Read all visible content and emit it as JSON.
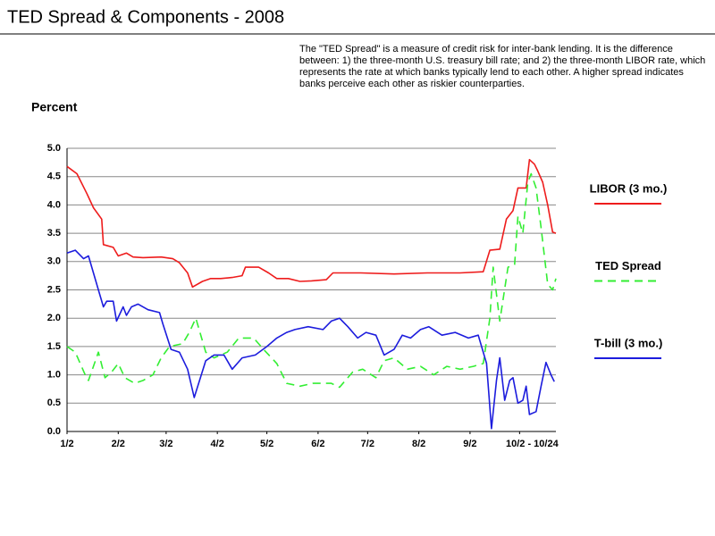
{
  "chart_data": {
    "type": "line",
    "title": "TED Spread & Components - 2008",
    "description": "The \"TED Spread\" is a measure of credit risk for inter-bank lending. It is the difference between: 1) the three-month U.S. treasury bill rate; and 2) the three-month LIBOR rate, which represents the rate at which banks typically lend to each other.  A higher spread indicates banks perceive each other as riskier counterparties.",
    "y_label": "Percent",
    "xlim": [
      2,
      298
    ],
    "xticks": [
      {
        "value": 2,
        "label": "1/2"
      },
      {
        "value": 33,
        "label": "2/2"
      },
      {
        "value": 62,
        "label": "3/2"
      },
      {
        "value": 93,
        "label": "4/2"
      },
      {
        "value": 123,
        "label": "5/2"
      },
      {
        "value": 154,
        "label": "6/2"
      },
      {
        "value": 184,
        "label": "7/2"
      },
      {
        "value": 215,
        "label": "8/2"
      },
      {
        "value": 246,
        "label": "9/2"
      },
      {
        "value": 276,
        "label": "10/2 - 10/24"
      }
    ],
    "ylim": [
      0,
      5
    ],
    "yticks": [
      {
        "value": 0,
        "label": "0.0"
      },
      0.5,
      {
        "value": 1,
        "label": "1.0"
      },
      1.5,
      {
        "value": 2,
        "label": "2.0"
      },
      2.5,
      {
        "value": 3,
        "label": "3.0"
      },
      3.5,
      {
        "value": 4,
        "label": "4.0"
      },
      4.5,
      {
        "value": 5,
        "label": "5.0"
      }
    ],
    "grid": true,
    "legend": "right",
    "series": [
      {
        "name": "LIBOR (3 mo.)",
        "color": "#ee1c1c",
        "line_style": "solid",
        "x": [
          2,
          8,
          14,
          18,
          23,
          24,
          30,
          33,
          38,
          42,
          48,
          59,
          66,
          70,
          75,
          78,
          84,
          89,
          95,
          102,
          108,
          110,
          118,
          124,
          129,
          136,
          143,
          150,
          159,
          163,
          180,
          200,
          220,
          240,
          254,
          258,
          264,
          268,
          272,
          275,
          280,
          282,
          285,
          287,
          290,
          293,
          296,
          298
        ],
        "values": [
          4.68,
          4.55,
          4.2,
          3.95,
          3.75,
          3.3,
          3.25,
          3.1,
          3.15,
          3.08,
          3.07,
          3.08,
          3.05,
          2.98,
          2.8,
          2.55,
          2.65,
          2.7,
          2.7,
          2.72,
          2.75,
          2.9,
          2.9,
          2.8,
          2.7,
          2.7,
          2.65,
          2.66,
          2.68,
          2.8,
          2.8,
          2.78,
          2.8,
          2.8,
          2.82,
          3.2,
          3.22,
          3.75,
          3.9,
          4.3,
          4.3,
          4.8,
          4.72,
          4.6,
          4.4,
          4.0,
          3.52,
          3.5
        ]
      },
      {
        "name": "TED Spread",
        "color": "#33ee33",
        "line_style": "dashed",
        "x": [
          2,
          7,
          13,
          15,
          21,
          25,
          29,
          33,
          37,
          43,
          48,
          54,
          59,
          64,
          72,
          76,
          80,
          86,
          91,
          99,
          106,
          115,
          121,
          129,
          135,
          143,
          151,
          162,
          167,
          175,
          181,
          189,
          194,
          200,
          208,
          216,
          224,
          232,
          240,
          248,
          254,
          258,
          260,
          264,
          269,
          273,
          275,
          278,
          281,
          283,
          286,
          289,
          293,
          296,
          298
        ],
        "values": [
          1.5,
          1.4,
          1.0,
          0.9,
          1.4,
          0.95,
          1.05,
          1.2,
          0.95,
          0.85,
          0.9,
          1.0,
          1.3,
          1.5,
          1.55,
          1.75,
          2.0,
          1.4,
          1.3,
          1.4,
          1.65,
          1.65,
          1.45,
          1.2,
          0.85,
          0.8,
          0.85,
          0.85,
          0.78,
          1.05,
          1.1,
          0.95,
          1.25,
          1.3,
          1.1,
          1.15,
          1.0,
          1.15,
          1.1,
          1.15,
          1.2,
          2.0,
          2.9,
          1.95,
          2.9,
          2.95,
          3.8,
          3.5,
          4.4,
          4.55,
          4.3,
          3.6,
          2.6,
          2.5,
          2.7
        ]
      },
      {
        "name": "T-bill (3 mo.)",
        "color": "#1c1cdd",
        "line_style": "solid",
        "x": [
          2,
          7,
          12,
          15,
          21,
          24,
          26,
          30,
          32,
          36,
          38,
          41,
          45,
          51,
          58,
          60,
          65,
          70,
          75,
          79,
          86,
          91,
          97,
          102,
          108,
          116,
          123,
          129,
          135,
          140,
          148,
          157,
          162,
          167,
          172,
          178,
          183,
          189,
          194,
          200,
          205,
          210,
          216,
          221,
          229,
          237,
          245,
          251,
          256,
          259,
          262,
          264,
          267,
          270,
          272,
          275,
          278,
          280,
          282,
          286,
          289,
          292,
          295,
          297
        ],
        "values": [
          3.15,
          3.2,
          3.05,
          3.1,
          2.5,
          2.2,
          2.3,
          2.3,
          1.95,
          2.2,
          2.05,
          2.2,
          2.25,
          2.15,
          2.1,
          1.9,
          1.45,
          1.4,
          1.1,
          0.6,
          1.25,
          1.35,
          1.35,
          1.1,
          1.3,
          1.35,
          1.5,
          1.65,
          1.75,
          1.8,
          1.85,
          1.8,
          1.95,
          2.0,
          1.85,
          1.65,
          1.75,
          1.7,
          1.35,
          1.45,
          1.7,
          1.65,
          1.8,
          1.85,
          1.7,
          1.75,
          1.65,
          1.7,
          1.2,
          0.05,
          0.9,
          1.3,
          0.55,
          0.9,
          0.95,
          0.5,
          0.55,
          0.8,
          0.3,
          0.35,
          0.8,
          1.22,
          1.0,
          0.88
        ]
      }
    ]
  }
}
